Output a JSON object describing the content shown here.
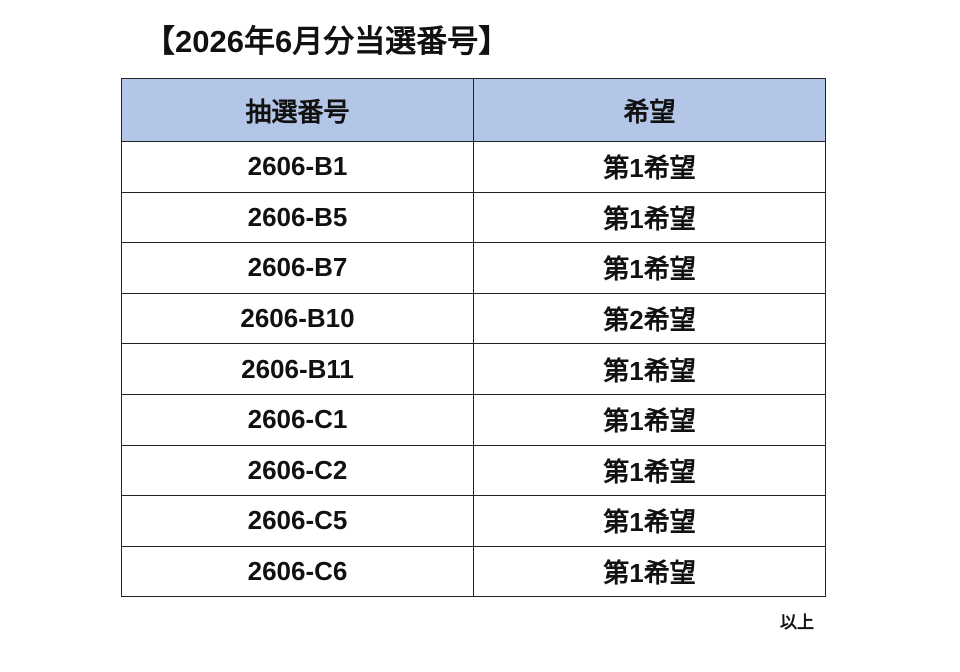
{
  "header": {
    "title": "【2026年6月分当選番号】"
  },
  "table": {
    "columns": [
      "抽選番号",
      "希望"
    ],
    "rows": [
      [
        "2606-B1",
        "第1希望"
      ],
      [
        "2606-B5",
        "第1希望"
      ],
      [
        "2606-B7",
        "第1希望"
      ],
      [
        "2606-B10",
        "第2希望"
      ],
      [
        "2606-B11",
        "第1希望"
      ],
      [
        "2606-C1",
        "第1希望"
      ],
      [
        "2606-C2",
        "第1希望"
      ],
      [
        "2606-C5",
        "第1希望"
      ],
      [
        "2606-C6",
        "第1希望"
      ]
    ]
  },
  "footer": {
    "note": "以上"
  }
}
